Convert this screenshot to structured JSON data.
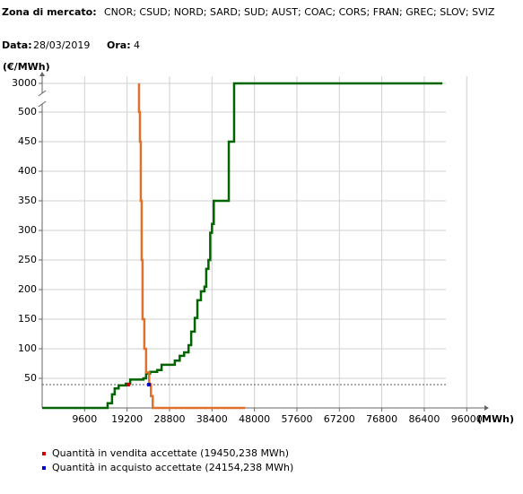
{
  "header": {
    "zone_label": "Zona di mercato:",
    "zones": "CNOR; CSUD; NORD; SARD; SUD; AUST; COAC; CORS; FRAN; GREC; SLOV; SVIZ",
    "date_label": "Data:",
    "date": "28/03/2019",
    "hour_label": "Ora:",
    "hour": 4
  },
  "chart_data": {
    "type": "step",
    "y_label": "(€/MWh)",
    "x_label": "(MWh)",
    "xlim": [
      0,
      100000
    ],
    "ylim": [
      0,
      3000
    ],
    "ybreak": [
      500,
      3000
    ],
    "xticks": [
      9600,
      19200,
      28800,
      38400,
      48000,
      57600,
      67200,
      76800,
      86400,
      96000
    ],
    "yticks": [
      50,
      100,
      150,
      200,
      250,
      300,
      350,
      400,
      450,
      500,
      3000
    ],
    "grid": true,
    "series": [
      {
        "color": "#006400",
        "x": [
          0,
          14800,
          15800,
          16400,
          17300,
          18900,
          19900,
          22900,
          23500,
          24400,
          26000,
          27000,
          30000,
          31100,
          32100,
          33100,
          33700,
          34500,
          35100,
          35900,
          36700,
          37100,
          37600,
          38000,
          38400,
          38800,
          42200,
          43400,
          43400,
          90500
        ],
        "values": [
          0,
          8,
          23,
          33,
          38,
          41,
          48,
          50,
          58,
          61,
          64,
          73,
          80,
          88,
          94,
          106,
          129,
          152,
          182,
          197,
          205,
          235,
          250,
          296,
          311,
          350,
          450,
          500,
          3000,
          3000
        ]
      },
      {
        "color": "#e0702a",
        "x": [
          21900,
          21900,
          22100,
          22300,
          22500,
          22700,
          23100,
          23500,
          24200,
          24600,
          25000,
          45900
        ],
        "values": [
          3000,
          500,
          450,
          350,
          250,
          150,
          100,
          60,
          40,
          20,
          0,
          0
        ]
      }
    ],
    "price_line": 39.4,
    "markers": [
      {
        "name": "Quantità in vendita accettate (19450,238 MWh)",
        "color": "#cc0000",
        "x": 19450.238
      },
      {
        "name": "Quantità in acquisto accettate (24154,238 MWh)",
        "color": "#0000cc",
        "x": 24154.238
      }
    ]
  }
}
